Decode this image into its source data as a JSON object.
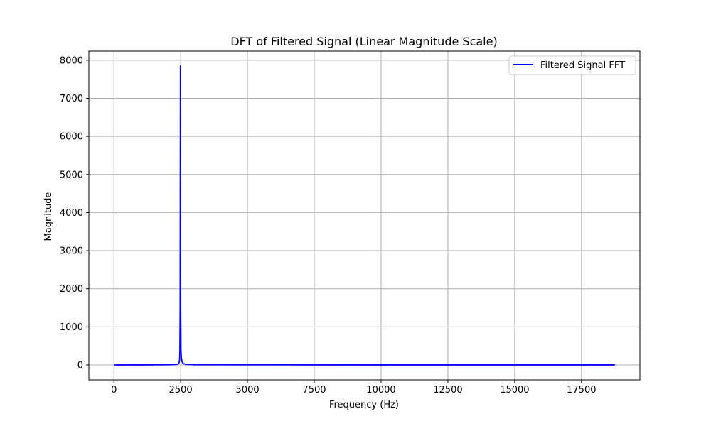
{
  "chart_data": {
    "type": "line",
    "title": "DFT of Filtered Signal (Linear Magnitude Scale)",
    "xlabel": "Frequency (Hz)",
    "ylabel": "Magnitude",
    "xlim": [
      -937,
      19687
    ],
    "ylim": [
      -392,
      8240
    ],
    "x_ticks": [
      0,
      2500,
      5000,
      7500,
      10000,
      12500,
      15000,
      17500
    ],
    "y_ticks": [
      0,
      1000,
      2000,
      3000,
      4000,
      5000,
      6000,
      7000,
      8000
    ],
    "grid": true,
    "legend_position": "top-right",
    "series": [
      {
        "name": "Filtered Signal FFT",
        "color": "#0000ff",
        "x": [
          0,
          1000,
          2000,
          2300,
          2400,
          2440,
          2460,
          2470,
          2480,
          2490,
          2500,
          2510,
          2520,
          2530,
          2540,
          2560,
          2600,
          2700,
          3000,
          5000,
          10000,
          15000,
          18750
        ],
        "y": [
          0,
          1,
          4,
          10,
          25,
          60,
          150,
          400,
          1500,
          7850,
          1500,
          400,
          250,
          180,
          120,
          70,
          35,
          15,
          5,
          2,
          1,
          1,
          1
        ]
      }
    ]
  }
}
